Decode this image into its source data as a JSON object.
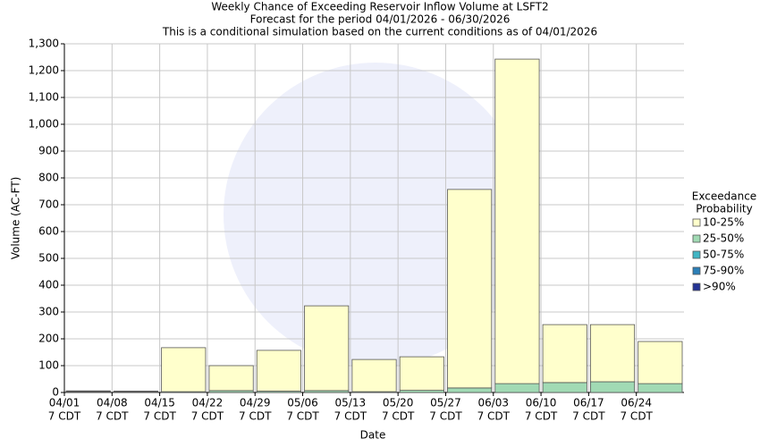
{
  "chart_data": {
    "type": "bar",
    "stacked": true,
    "title": "Weekly Chance of Exceeding Reservoir Inflow Volume at LSFT2",
    "subtitles": [
      "Forecast for the period 04/01/2026 - 06/30/2026",
      "This is a conditional simulation based on the current conditions as of 04/01/2026"
    ],
    "x_label": "Date",
    "y_label": "Volume (AC-FT)",
    "categories": [
      "04/01",
      "04/08",
      "04/15",
      "04/22",
      "04/29",
      "05/06",
      "05/13",
      "05/20",
      "05/27",
      "06/03",
      "06/10",
      "06/17",
      "06/24"
    ],
    "category_sublabel": "7 CDT",
    "legend_title": [
      "Exceedance",
      "Probability"
    ],
    "legend_position": "right",
    "grid": true,
    "series": [
      {
        "name": "10-25%",
        "color": "#ffffcc",
        "values": [
          1,
          1,
          164,
          93,
          152,
          316,
          120,
          125,
          740,
          1210,
          216,
          213,
          157
        ]
      },
      {
        "name": "25-50%",
        "color": "#a1dab4",
        "values": [
          1,
          1,
          3,
          7,
          5,
          7,
          3,
          8,
          17,
          33,
          37,
          40,
          33
        ]
      },
      {
        "name": "50-75%",
        "color": "#41b6c4",
        "values": [
          1,
          1,
          0,
          0,
          0,
          0,
          0,
          0,
          0,
          0,
          0,
          0,
          0
        ]
      },
      {
        "name": "75-90%",
        "color": "#2c7fb8",
        "values": [
          1,
          1,
          0,
          0,
          0,
          0,
          0,
          0,
          0,
          0,
          0,
          0,
          0
        ]
      },
      {
        "name": ">90%",
        "color": "#253494",
        "values": [
          2,
          1,
          0,
          0,
          0,
          0,
          0,
          0,
          0,
          0,
          0,
          0,
          0
        ]
      }
    ],
    "ylim": [
      0,
      1300
    ],
    "yticks": [
      0,
      100,
      200,
      300,
      400,
      500,
      600,
      700,
      800,
      900,
      {
        "value": 1000,
        "label": "1,000"
      },
      {
        "value": 1100,
        "label": "1,100"
      },
      {
        "value": 1200,
        "label": "1,200"
      },
      {
        "value": 1300,
        "label": "1,300"
      }
    ]
  }
}
